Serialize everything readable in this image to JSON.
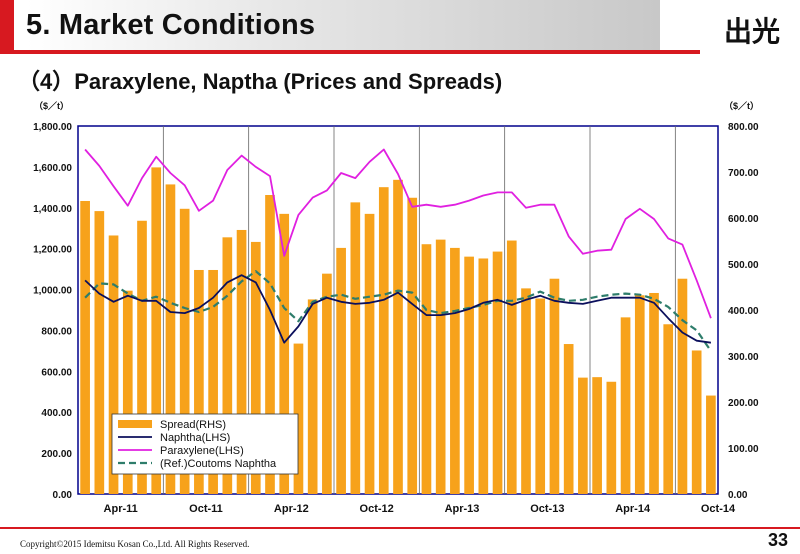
{
  "header": {
    "section_title": "5. Market Conditions",
    "subtitle": "（4）Paraxylene, Naptha (Prices and Spreads)",
    "logo_text": "出光"
  },
  "footer": {
    "copyright": "Copyright©2015 Idemitsu Kosan Co.,Ltd. All Rights Reserved.",
    "page_number": "33"
  },
  "colors": {
    "accent": "#d71920",
    "spread": "#f7a21b",
    "naphtha": "#0b0f5c",
    "paraxylene": "#e020e0",
    "customs": "#2e7d6b",
    "axis_frame": "#00008b"
  },
  "chart_data": {
    "type": "bar",
    "left_unit": "（$／t）",
    "right_unit": "（$／t）",
    "x_labels": [
      "Apr-11",
      "Oct-11",
      "Apr-12",
      "Oct-12",
      "Apr-13",
      "Oct-13",
      "Apr-14",
      "Oct-14"
    ],
    "y_left": {
      "min": 0,
      "max": 1800,
      "step": 200,
      "ticks": [
        "0.00",
        "200.00",
        "400.00",
        "600.00",
        "800.00",
        "1,000.00",
        "1,200.00",
        "1,400.00",
        "1,600.00",
        "1,800.00"
      ]
    },
    "y_right": {
      "min": 0,
      "max": 800,
      "step": 100,
      "ticks": [
        "0.00",
        "100.00",
        "200.00",
        "300.00",
        "400.00",
        "500.00",
        "600.00",
        "700.00",
        "800.00"
      ]
    },
    "months": [
      "Apr-11",
      "May-11",
      "Jun-11",
      "Jul-11",
      "Aug-11",
      "Sep-11",
      "Oct-11",
      "Nov-11",
      "Dec-11",
      "Jan-12",
      "Feb-12",
      "Mar-12",
      "Apr-12",
      "May-12",
      "Jun-12",
      "Jul-12",
      "Aug-12",
      "Sep-12",
      "Oct-12",
      "Nov-12",
      "Dec-12",
      "Jan-13",
      "Feb-13",
      "Mar-13",
      "Apr-13",
      "May-13",
      "Jun-13",
      "Jul-13",
      "Aug-13",
      "Sep-13",
      "Oct-13",
      "Nov-13",
      "Dec-13",
      "Jan-14",
      "Feb-14",
      "Mar-14",
      "Apr-14",
      "May-14",
      "Jun-14",
      "Jul-14",
      "Aug-14",
      "Sep-14",
      "Oct-14",
      "Nov-14",
      "Dec-14"
    ],
    "series": [
      {
        "name": "Spread(RHS)",
        "type": "bar",
        "axis": "right",
        "values": [
          637,
          615,
          562,
          442,
          594,
          710,
          673,
          620,
          487,
          487,
          558,
          574,
          548,
          650,
          609,
          327,
          423,
          479,
          535,
          634,
          609,
          667,
          683,
          644,
          543,
          553,
          535,
          516,
          512,
          527,
          551,
          447,
          425,
          468,
          326,
          253,
          254,
          244,
          384,
          432,
          437,
          369,
          468,
          312,
          214
        ]
      },
      {
        "name": "Naphtha(LHS)",
        "type": "line",
        "axis": "left",
        "values": [
          1045,
          980,
          940,
          970,
          945,
          945,
          890,
          885,
          910,
          960,
          1035,
          1070,
          1035,
          900,
          740,
          820,
          930,
          960,
          940,
          930,
          935,
          950,
          985,
          930,
          875,
          875,
          885,
          905,
          935,
          950,
          925,
          950,
          970,
          945,
          935,
          930,
          945,
          960,
          960,
          960,
          935,
          860,
          790,
          750,
          740
        ]
      },
      {
        "name": "Paraxylene(LHS)",
        "type": "line",
        "axis": "left",
        "values": [
          1685,
          1605,
          1505,
          1410,
          1545,
          1650,
          1570,
          1510,
          1385,
          1435,
          1585,
          1655,
          1600,
          1555,
          1165,
          1365,
          1450,
          1485,
          1570,
          1545,
          1625,
          1685,
          1565,
          1405,
          1415,
          1405,
          1415,
          1435,
          1460,
          1475,
          1475,
          1400,
          1415,
          1415,
          1260,
          1175,
          1190,
          1195,
          1345,
          1395,
          1345,
          1250,
          1220,
          1045,
          860
        ]
      },
      {
        "name": "(Ref.)Coutoms Naphtha",
        "type": "dashed-line",
        "axis": "left",
        "values": [
          960,
          1030,
          1025,
          980,
          945,
          965,
          935,
          910,
          890,
          915,
          970,
          1040,
          1090,
          1030,
          910,
          845,
          940,
          965,
          975,
          955,
          965,
          975,
          995,
          985,
          900,
          885,
          895,
          910,
          925,
          945,
          945,
          960,
          990,
          960,
          945,
          950,
          965,
          975,
          980,
          975,
          955,
          915,
          850,
          800,
          700
        ]
      }
    ],
    "legend_position": "bottom-left",
    "grid": {
      "vertical": true,
      "horizontal": false
    }
  }
}
